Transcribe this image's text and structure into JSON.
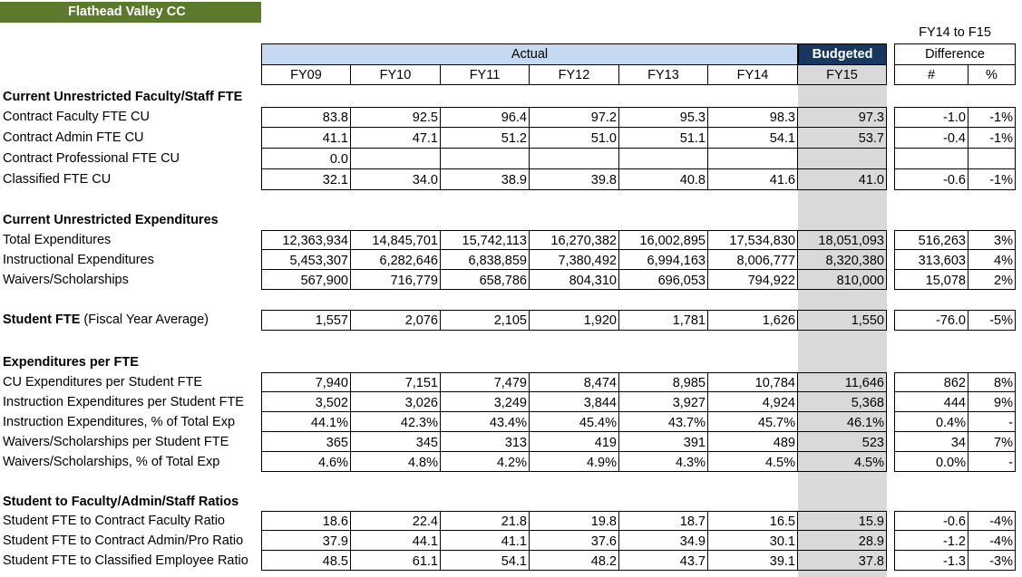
{
  "title": "Flathead Valley CC",
  "header": {
    "actual": "Actual",
    "budgeted": "Budgeted",
    "diff_title": "FY14 to F15",
    "diff_label": "Difference",
    "columns": [
      "FY09",
      "FY10",
      "FY11",
      "FY12",
      "FY13",
      "FY14",
      "FY15"
    ],
    "diff_columns": [
      "#",
      "%"
    ]
  },
  "sections": [
    {
      "title": "Current Unrestricted Faculty/Staff FTE",
      "rows": [
        {
          "label": "Contract Faculty FTE CU",
          "values": [
            "83.8",
            "92.5",
            "96.4",
            "97.2",
            "95.3",
            "98.3",
            "97.3"
          ],
          "diff": [
            "-1.0",
            "-1%"
          ]
        },
        {
          "label": "Contract Admin FTE CU",
          "values": [
            "41.1",
            "47.1",
            "51.2",
            "51.0",
            "51.1",
            "54.1",
            "53.7"
          ],
          "diff": [
            "-0.4",
            "-1%"
          ]
        },
        {
          "label": "Contract Professional FTE CU",
          "values": [
            "0.0",
            "",
            "",
            "",
            "",
            "",
            ""
          ],
          "diff": [
            "",
            ""
          ]
        },
        {
          "label": "Classified FTE CU",
          "values": [
            "32.1",
            "34.0",
            "38.9",
            "39.8",
            "40.8",
            "41.6",
            "41.0"
          ],
          "diff": [
            "-0.6",
            "-1%"
          ]
        }
      ]
    },
    {
      "title": "Current Unrestricted Expenditures",
      "rows": [
        {
          "label": "Total Expenditures",
          "values": [
            "12,363,934",
            "14,845,701",
            "15,742,113",
            "16,270,382",
            "16,002,895",
            "17,534,830",
            "18,051,093"
          ],
          "diff": [
            "516,263",
            "3%"
          ]
        },
        {
          "label": "Instructional Expenditures",
          "values": [
            "5,453,307",
            "6,282,646",
            "6,838,859",
            "7,380,492",
            "6,994,163",
            "8,006,777",
            "8,320,380"
          ],
          "diff": [
            "313,603",
            "4%"
          ]
        },
        {
          "label": "Waivers/Scholarships",
          "values": [
            "567,900",
            "716,779",
            "658,786",
            "804,310",
            "696,053",
            "794,922",
            "810,000"
          ],
          "diff": [
            "15,078",
            "2%"
          ]
        }
      ]
    },
    {
      "title": "",
      "rows": [
        {
          "label": "Student FTE",
          "label_suffix": " (Fiscal Year Average)",
          "values": [
            "1,557",
            "2,076",
            "2,105",
            "1,920",
            "1,781",
            "1,626",
            "1,550"
          ],
          "diff": [
            "-76.0",
            "-5%"
          ]
        }
      ]
    },
    {
      "title": "Expenditures per FTE",
      "rows": [
        {
          "label": "CU Expenditures per Student FTE",
          "values": [
            "7,940",
            "7,151",
            "7,479",
            "8,474",
            "8,985",
            "10,784",
            "11,646"
          ],
          "diff": [
            "862",
            "8%"
          ]
        },
        {
          "label": "Instruction Expenditures per Student FTE",
          "values": [
            "3,502",
            "3,026",
            "3,249",
            "3,844",
            "3,927",
            "4,924",
            "5,368"
          ],
          "diff": [
            "444",
            "9%"
          ]
        },
        {
          "label": "Instruction Expenditures, % of Total Exp",
          "values": [
            "44.1%",
            "42.3%",
            "43.4%",
            "45.4%",
            "43.7%",
            "45.7%",
            "46.1%"
          ],
          "diff": [
            "0.4%",
            "-"
          ]
        },
        {
          "label": "Waivers/Scholarships per Student FTE",
          "values": [
            "365",
            "345",
            "313",
            "419",
            "391",
            "489",
            "523"
          ],
          "diff": [
            "34",
            "7%"
          ]
        },
        {
          "label": "Waivers/Scholarships, % of Total Exp",
          "values": [
            "4.6%",
            "4.8%",
            "4.2%",
            "4.9%",
            "4.3%",
            "4.5%",
            "4.5%"
          ],
          "diff": [
            "0.0%",
            "-"
          ]
        }
      ]
    },
    {
      "title": "Student to Faculty/Admin/Staff Ratios",
      "rows": [
        {
          "label": "Student FTE to Contract Faculty Ratio",
          "values": [
            "18.6",
            "22.4",
            "21.8",
            "19.8",
            "18.7",
            "16.5",
            "15.9"
          ],
          "diff": [
            "-0.6",
            "-4%"
          ]
        },
        {
          "label": "Student FTE to Contract Admin/Pro Ratio",
          "values": [
            "37.9",
            "44.1",
            "41.1",
            "37.6",
            "34.9",
            "30.1",
            "28.9"
          ],
          "diff": [
            "-1.2",
            "-4%"
          ]
        },
        {
          "label": "Student FTE to Classified Employee Ratio",
          "values": [
            "48.5",
            "61.1",
            "54.1",
            "48.2",
            "43.7",
            "39.1",
            "37.8"
          ],
          "diff": [
            "-1.3",
            "-3%"
          ]
        }
      ]
    }
  ]
}
